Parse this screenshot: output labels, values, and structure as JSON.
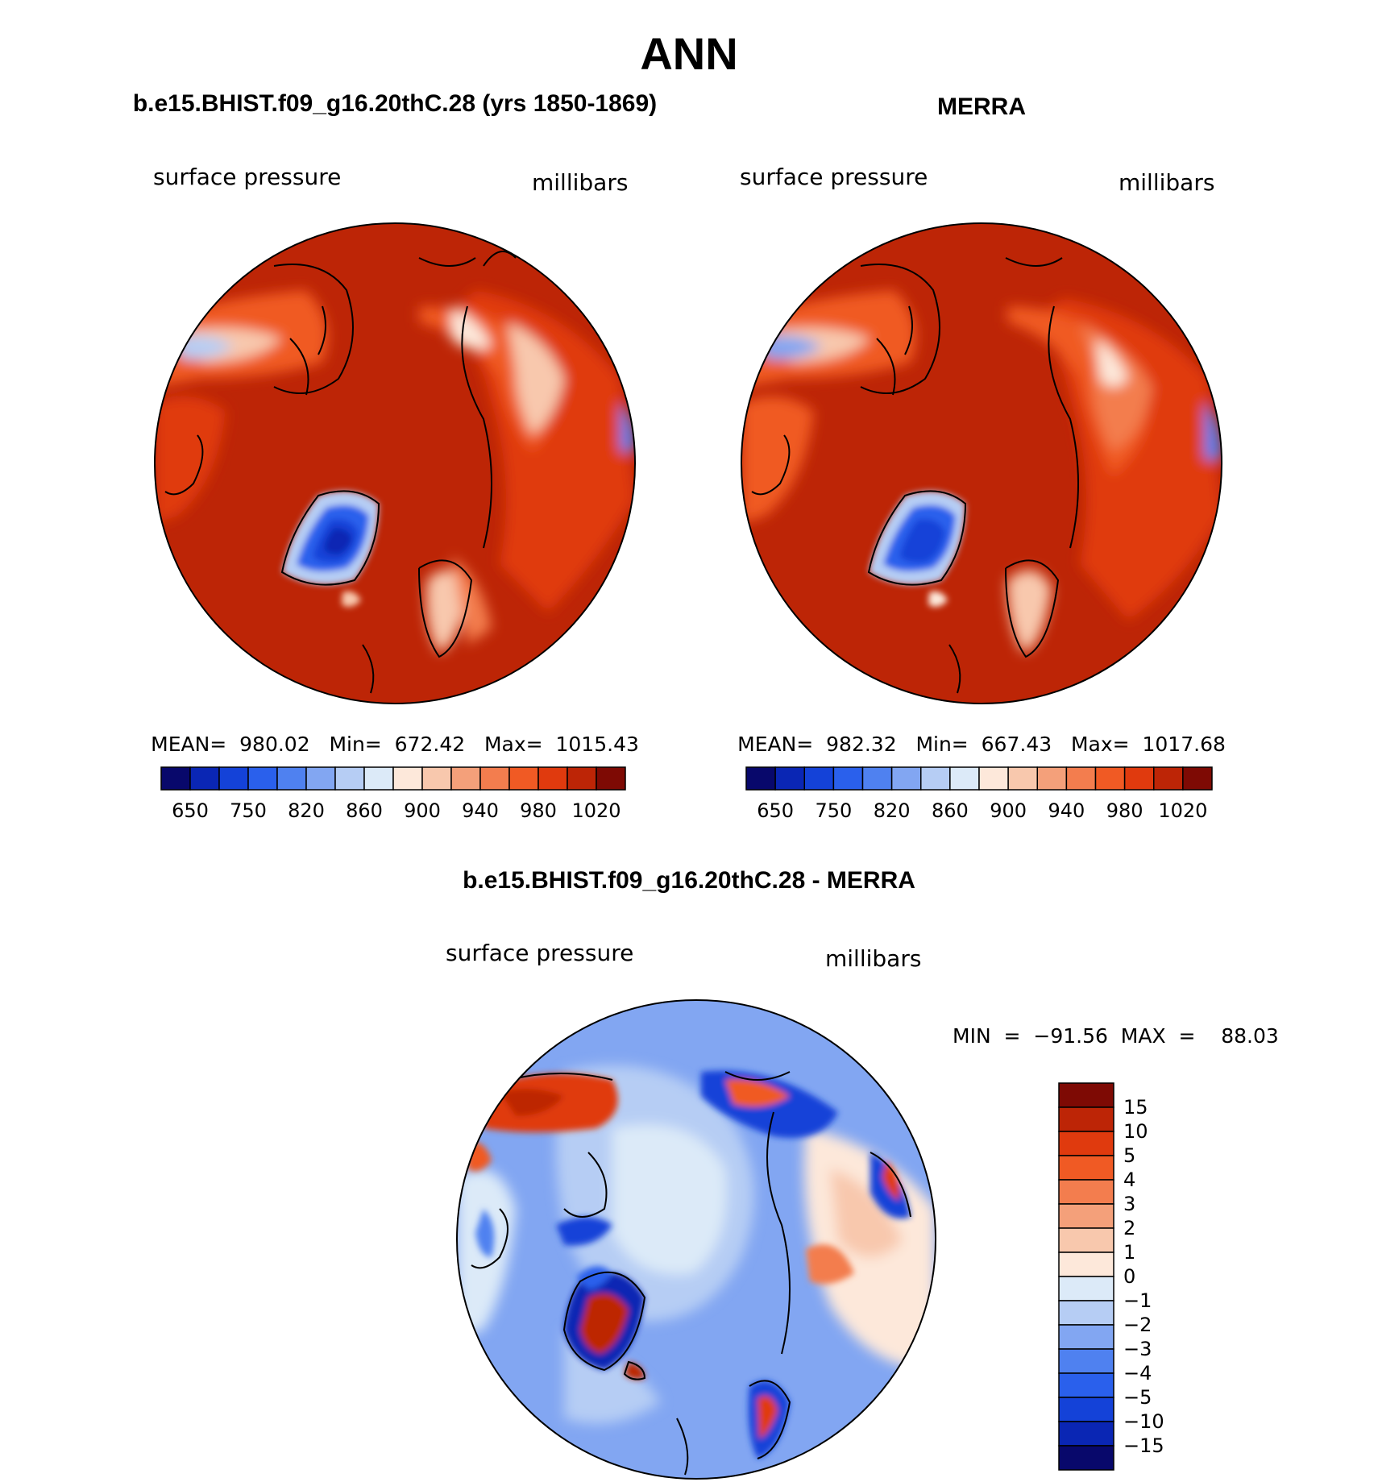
{
  "title": "ANN",
  "panels": [
    {
      "case_title": "b.e15.BHIST.f09_g16.20thC.28 (yrs 1850-1869)",
      "variable": "surface pressure",
      "units": "millibars",
      "stats": "MEAN=  980.02   Min=  672.42   Max=  1015.43",
      "colorbar_labels": [
        "650",
        "750",
        "820",
        "860",
        "900",
        "940",
        "980",
        "1020"
      ]
    },
    {
      "case_title": "MERRA",
      "variable": "surface pressure",
      "units": "millibars",
      "stats": "MEAN=  982.32   Min=  667.43   Max=  1017.68",
      "colorbar_labels": [
        "650",
        "750",
        "820",
        "860",
        "900",
        "940",
        "980",
        "1020"
      ]
    }
  ],
  "diff_panel": {
    "case_title": "b.e15.BHIST.f09_g16.20thC.28 - MERRA",
    "variable": "surface pressure",
    "units": "millibars",
    "minmax": "MIN  =  −91.56  MAX  =    88.03",
    "colorbar_labels": [
      "15",
      "10",
      "5",
      "4",
      "3",
      "2",
      "1",
      "0",
      "−1",
      "−2",
      "−3",
      "−4",
      "−5",
      "−10",
      "−15"
    ]
  },
  "colors": {
    "abs_scale": [
      "#08086b",
      "#0a26b4",
      "#1442d8",
      "#2a60ec",
      "#4f81f0",
      "#82a6f2",
      "#b6cdf4",
      "#dceaf8",
      "#fde8da",
      "#f8c8ad",
      "#f4a07a",
      "#f37d4e",
      "#f05a24",
      "#e03a0e",
      "#bd2506",
      "#7e0a04"
    ],
    "diff_scale": [
      "#7e0a04",
      "#bd2506",
      "#e03a0e",
      "#f05a24",
      "#f37d4e",
      "#f4a07a",
      "#f8c8ad",
      "#fde8da",
      "#dceaf8",
      "#b6cdf4",
      "#82a6f2",
      "#4f81f0",
      "#2a60ec",
      "#1442d8",
      "#0a26b4",
      "#08086b"
    ]
  }
}
